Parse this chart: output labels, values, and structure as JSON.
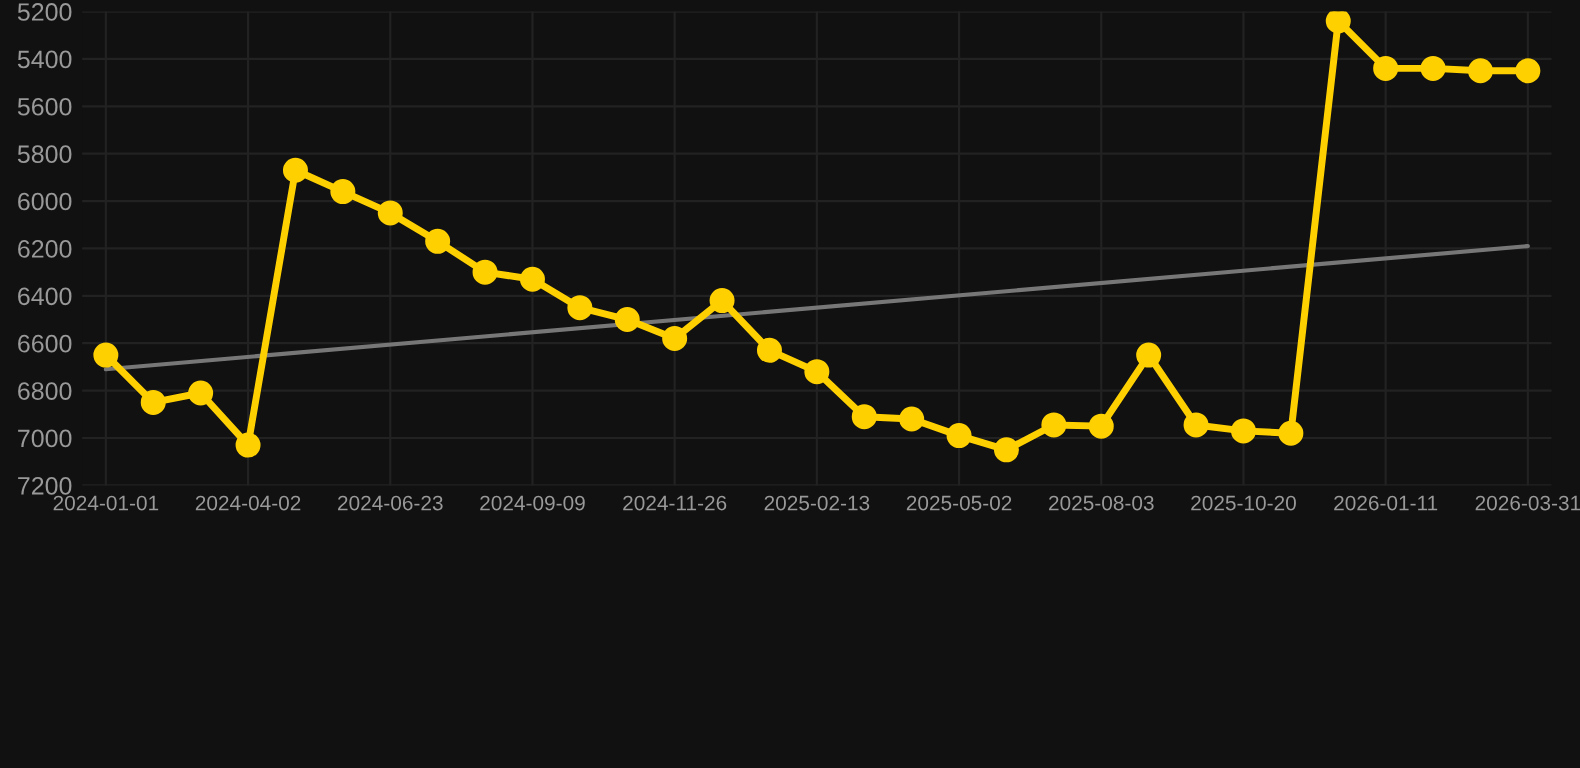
{
  "chart_data": {
    "type": "line",
    "categories": [
      "2024-01-01",
      null,
      null,
      "2024-04-02",
      null,
      null,
      "2024-06-23",
      null,
      null,
      "2024-09-09",
      null,
      null,
      "2024-11-26",
      null,
      null,
      "2025-02-13",
      null,
      null,
      "2025-05-02",
      null,
      null,
      "2025-08-03",
      null,
      null,
      "2025-10-20",
      null,
      null,
      "2026-01-11",
      null,
      null,
      "2026-03-31"
    ],
    "series": [
      {
        "color": "#ffd000",
        "marker": "circle",
        "values": [
          6650,
          6850,
          6810,
          7030,
          5870,
          5960,
          6050,
          6170,
          6300,
          6330,
          6450,
          6500,
          6580,
          6420,
          6630,
          6720,
          6910,
          6920,
          6990,
          7050,
          6945,
          6950,
          6650,
          6945,
          6970,
          6980,
          5240,
          5440,
          5440,
          5450,
          5450
        ]
      },
      {
        "color": "#777777",
        "marker": "none",
        "values": [
          6710,
          null,
          null,
          null,
          null,
          null,
          null,
          null,
          null,
          null,
          null,
          null,
          null,
          null,
          null,
          null,
          null,
          null,
          null,
          null,
          null,
          null,
          null,
          null,
          null,
          null,
          null,
          null,
          null,
          null,
          6190
        ]
      }
    ],
    "ylim": [
      7200,
      5200
    ],
    "yticks": [
      5200,
      5400,
      5600,
      5800,
      6000,
      6200,
      6400,
      6600,
      6800,
      7000,
      7200
    ],
    "grid": true,
    "legend": false
  }
}
